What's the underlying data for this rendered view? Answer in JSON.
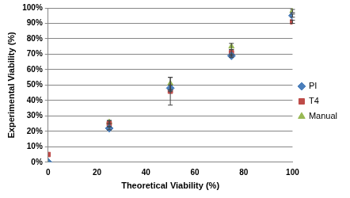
{
  "chart_data": {
    "type": "scatter",
    "x_label": "Theoretical Viability (%)",
    "y_label": "Experimental Viability (%)",
    "xlim": [
      0,
      100
    ],
    "xticks": [
      0,
      20,
      40,
      60,
      80,
      100
    ],
    "ylim": [
      0,
      100
    ],
    "yticks": [
      {
        "value": 0,
        "label": "0%"
      },
      {
        "value": 10,
        "label": "10%"
      },
      {
        "value": 20,
        "label": "20%"
      },
      {
        "value": 30,
        "label": "30%"
      },
      {
        "value": 40,
        "label": "40%"
      },
      {
        "value": 50,
        "label": "50%"
      },
      {
        "value": 60,
        "label": "60%"
      },
      {
        "value": 70,
        "label": "70%"
      },
      {
        "value": 80,
        "label": "80%"
      },
      {
        "value": 90,
        "label": "90%"
      },
      {
        "value": 100,
        "label": "100%"
      }
    ],
    "grid": "y",
    "legend": "right",
    "series": [
      {
        "name": "PI",
        "color": "#4a7ebb",
        "marker": "diamond",
        "x": [
          0,
          25,
          50,
          75,
          100
        ],
        "values": [
          0,
          22,
          48,
          69,
          95
        ],
        "errors": [
          0,
          1,
          2,
          1,
          1
        ]
      },
      {
        "name": "T4",
        "color": "#be4b48",
        "marker": "square",
        "x": [
          0,
          25,
          50,
          75,
          100
        ],
        "values": [
          5,
          25,
          46,
          71,
          91
        ],
        "errors": [
          0,
          2,
          9,
          2,
          1
        ]
      },
      {
        "name": "Manual",
        "color": "#98b954",
        "marker": "triangle",
        "x": [
          0,
          25,
          50,
          75,
          100
        ],
        "values": [
          0,
          26,
          51,
          75,
          98
        ],
        "errors": [
          0,
          1,
          4,
          2,
          1
        ]
      }
    ]
  }
}
